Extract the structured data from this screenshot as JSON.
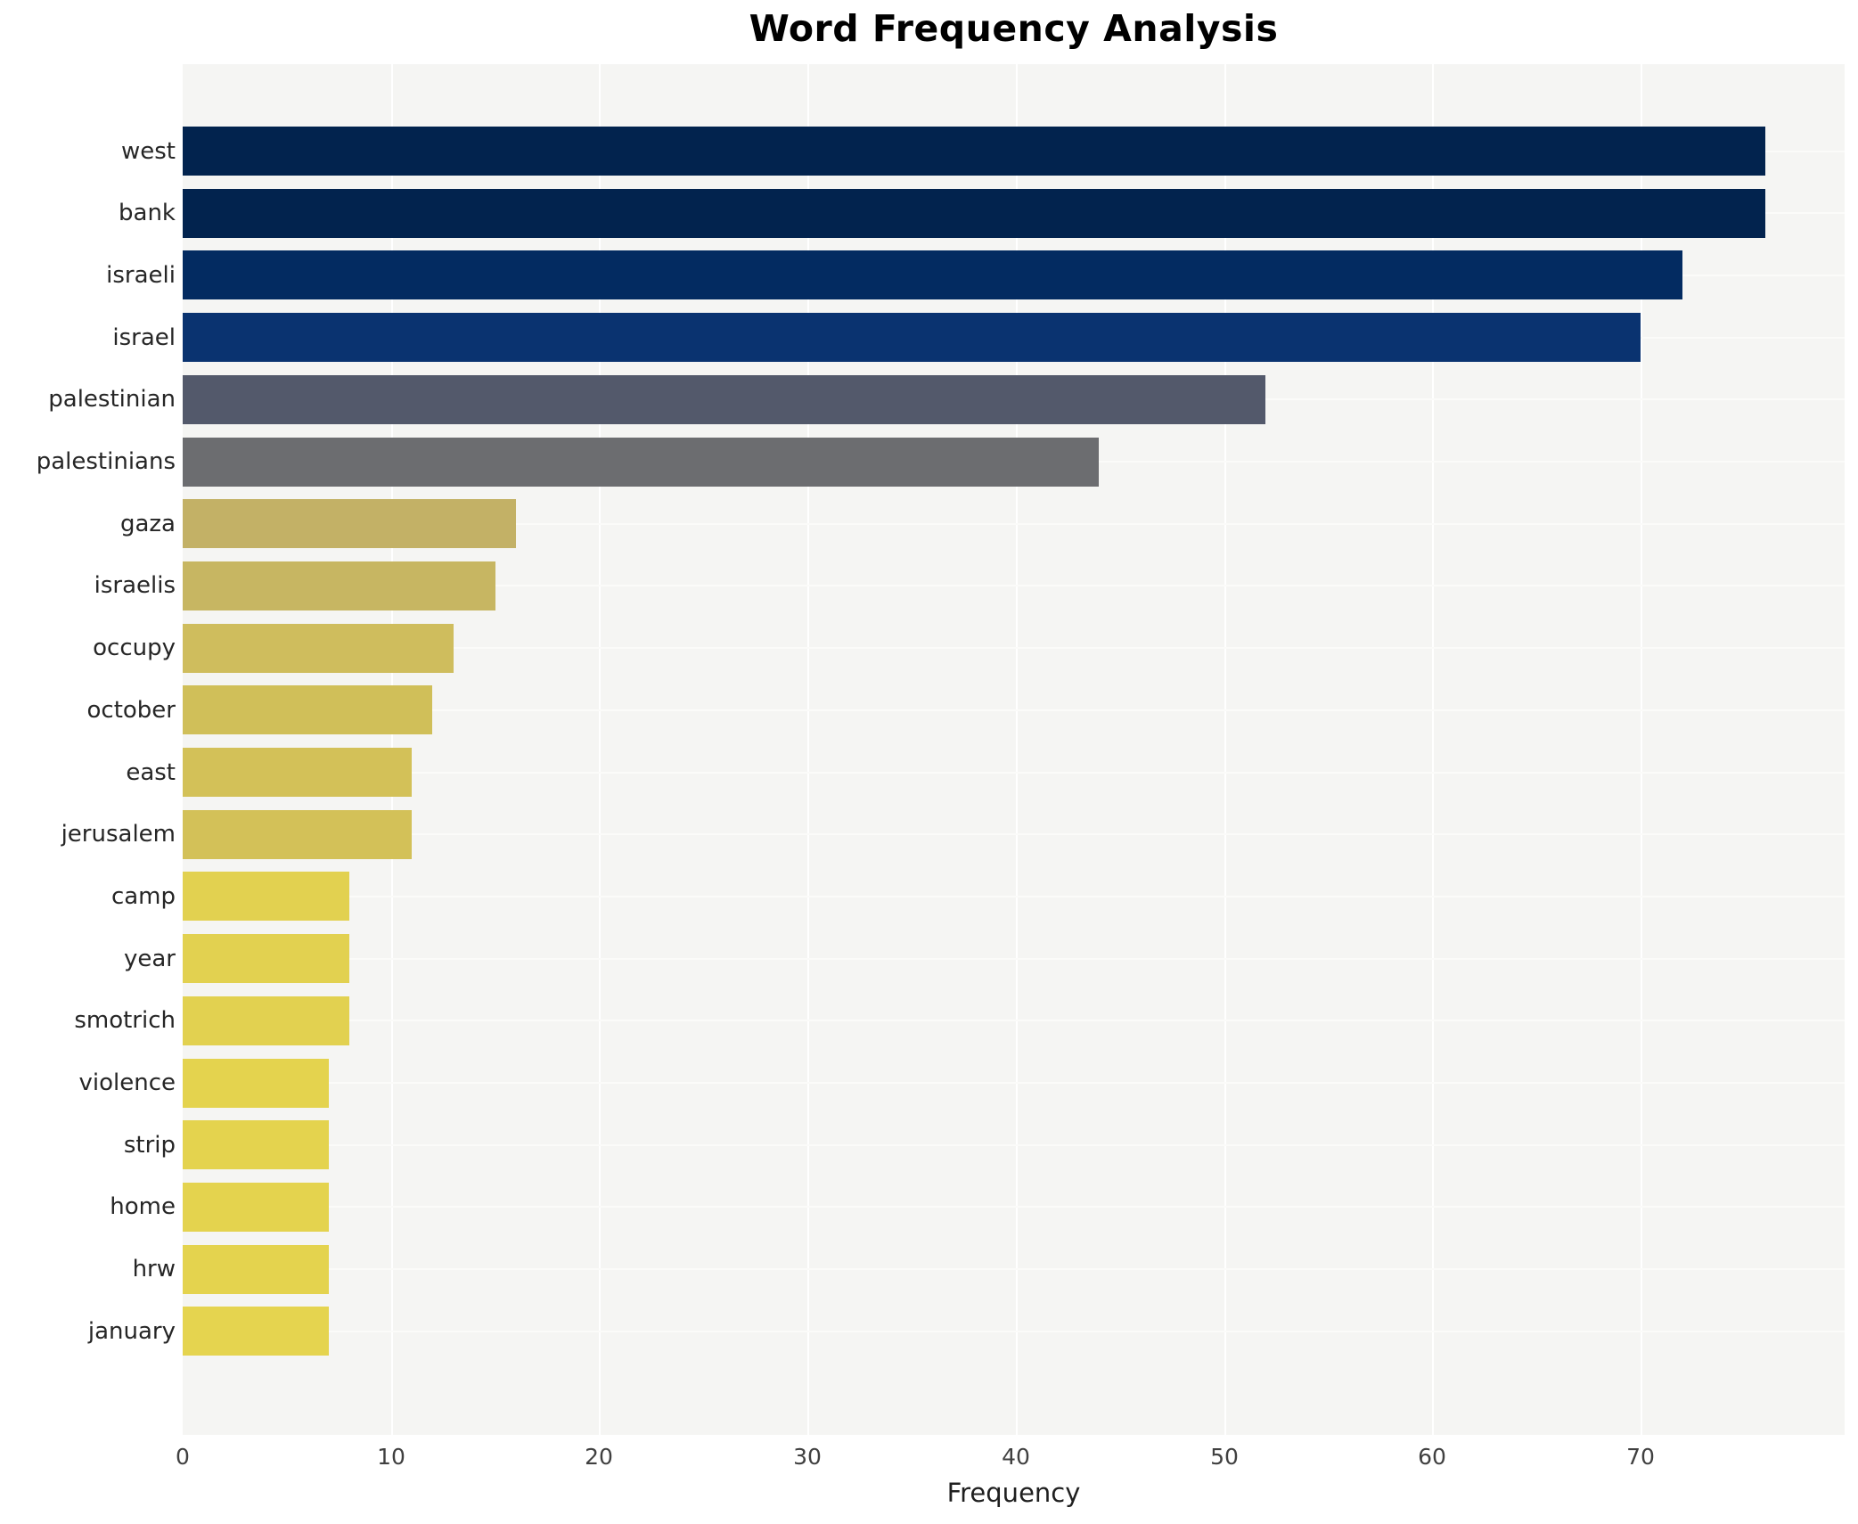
{
  "title": "Word Frequency Analysis",
  "x_axis": {
    "label": "Frequency",
    "ticks": [
      0,
      10,
      20,
      30,
      40,
      50,
      60,
      70
    ],
    "max": 79.8
  },
  "chart_data": {
    "type": "bar",
    "orientation": "horizontal",
    "title": "Word Frequency Analysis",
    "xlabel": "Frequency",
    "ylabel": "",
    "xlim": [
      0,
      79.8
    ],
    "x_ticks": [
      0,
      10,
      20,
      30,
      40,
      50,
      60,
      70
    ],
    "grid": true,
    "legend": false,
    "categories": [
      "west",
      "bank",
      "israeli",
      "israel",
      "palestinian",
      "palestinians",
      "gaza",
      "israelis",
      "occupy",
      "october",
      "east",
      "jerusalem",
      "camp",
      "year",
      "smotrich",
      "violence",
      "strip",
      "home",
      "hrw",
      "january"
    ],
    "values": [
      76,
      76,
      72,
      70,
      52,
      44,
      16,
      15,
      13,
      12,
      11,
      11,
      8,
      8,
      8,
      7,
      7,
      7,
      7,
      7
    ],
    "bar_colors": [
      "#02234e",
      "#02234e",
      "#032b61",
      "#0a3370",
      "#53596b",
      "#6c6d70",
      "#c3b166",
      "#c7b662",
      "#cfbd5d",
      "#d0bf59",
      "#d3c158",
      "#d3c158",
      "#e2d150",
      "#e2d150",
      "#e2d150",
      "#e4d34e",
      "#e4d34e",
      "#e4d34e",
      "#e4d34e",
      "#e5d44f"
    ]
  },
  "style_colors": {
    "plot_background": "#f5f5f3",
    "grid_line": "#ffffff",
    "title_text": "#000000",
    "category_text": "#262626",
    "tick_text": "#404040"
  }
}
